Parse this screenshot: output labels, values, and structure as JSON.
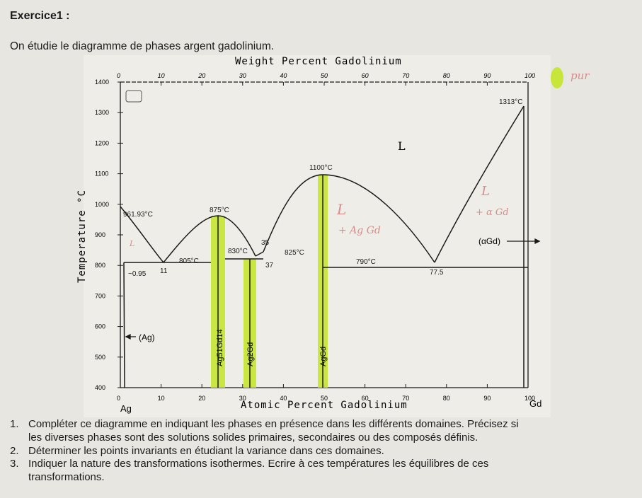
{
  "header": {
    "title": "Exercice1 :",
    "intro": "On étudie le diagramme de phases argent gadolinium."
  },
  "diagram": {
    "top_axis_label": "Weight Percent Gadolinium",
    "bottom_axis_label": "Atomic Percent Gadolinium",
    "y_axis_label": "Temperature °C",
    "weight_ticks": [
      "0",
      "10",
      "20",
      "30",
      "40",
      "50",
      "60",
      "70",
      "80",
      "90",
      "100"
    ],
    "atomic_ticks": [
      "0",
      "10",
      "20",
      "30",
      "40",
      "50",
      "60",
      "70",
      "80",
      "90",
      "100"
    ],
    "temp_ticks": [
      "1400",
      "1300",
      "1200",
      "1100",
      "1000",
      "900",
      "800",
      "700",
      "600",
      "500",
      "400"
    ],
    "left_element": "Ag",
    "right_element": "Gd",
    "annotations": {
      "t_961": "961.93°C",
      "t_875": "875°C",
      "t_830": "830°C",
      "t_825": "825°C",
      "t_805": "805°C",
      "t_1100": "1100°C",
      "t_790": "790°C",
      "t_1313": "1313°C",
      "c_095": "~0.95",
      "c_11": "11",
      "c_35": "35",
      "c_37": "37",
      "c_775": "77.5",
      "liquid": "L",
      "ag_phase": "(Ag)",
      "agd_phase": "(αGd)"
    },
    "compounds": [
      "Ag51Gd14",
      "Ag2Gd",
      "AgGd"
    ],
    "handwritten": {
      "l_left": "L",
      "l_left2": "+ Ag Gd",
      "l_right": "L",
      "l_right2": "+ α Gd",
      "l_small": "L",
      "corner": "pur"
    },
    "colors": {
      "highlight": "#c8e63a",
      "line": "#1a1a1a"
    }
  },
  "questions": [
    {
      "num": "1.",
      "text": "Compléter ce diagramme en indiquant les phases en présence dans les différents domaines. Précisez si",
      "cont": "les diverses phases sont des solutions solides primaires, secondaires ou des composés définis."
    },
    {
      "num": "2.",
      "text": "Déterminer les points invariants en étudiant la variance dans ces domaines.",
      "cont": ""
    },
    {
      "num": "3.",
      "text": "Indiquer la nature des transformations isothermes. Ecrire à ces températures les équilibres de ces",
      "cont": "transformations."
    }
  ]
}
